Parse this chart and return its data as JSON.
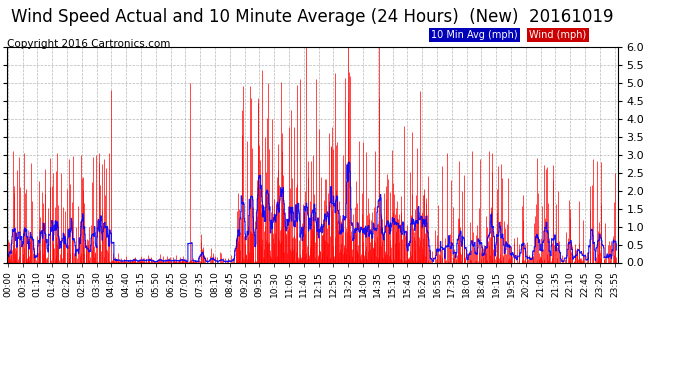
{
  "title": "Wind Speed Actual and 10 Minute Average (24 Hours)  (New)  20161019",
  "copyright": "Copyright 2016 Cartronics.com",
  "ylim": [
    0.0,
    6.0
  ],
  "yticks": [
    0.0,
    0.5,
    1.0,
    1.5,
    2.0,
    2.5,
    3.0,
    3.5,
    4.0,
    4.5,
    5.0,
    5.5,
    6.0
  ],
  "wind_color": "#ff0000",
  "avg_color": "#0000ff",
  "legend_avg_bg": "#0000bb",
  "legend_wind_bg": "#cc0000",
  "background_color": "#ffffff",
  "grid_color": "#b0b0b0",
  "title_fontsize": 12,
  "copyright_fontsize": 7.5,
  "tick_label_fontsize": 6.5
}
